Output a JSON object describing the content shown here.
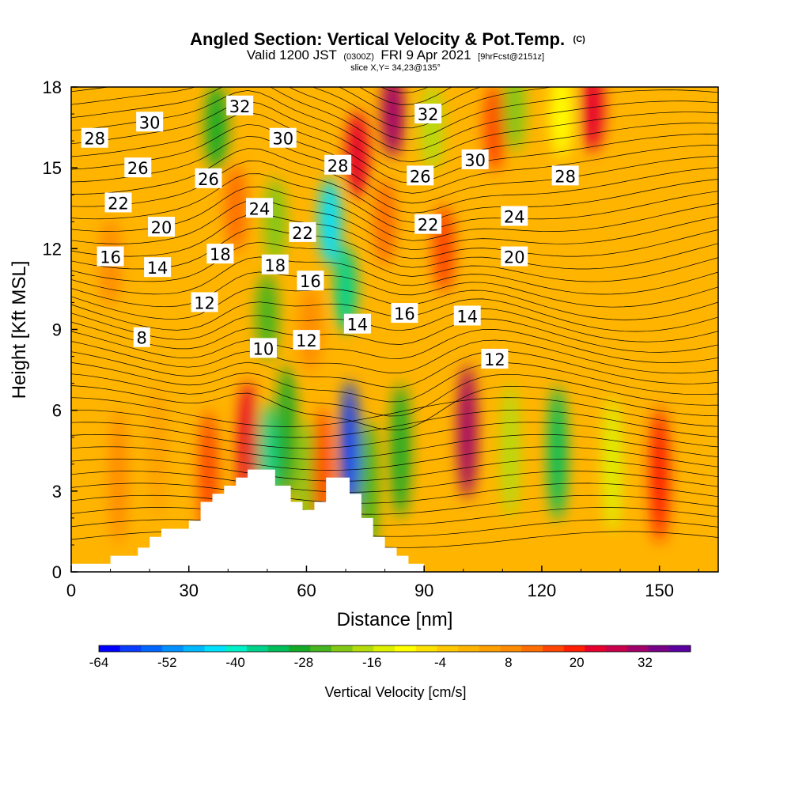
{
  "title": {
    "main": "Angled Section: Vertical Velocity & Pot.Temp.",
    "copyright": "(C)",
    "valid_part1": "Valid 1200 JST",
    "valid_utc": "(0300Z)",
    "valid_part2": "FRI 9 Apr 2021",
    "forecast": "[9hrFcst@2151z]",
    "slice": "slice X,Y= 34,23@135°"
  },
  "chart_data": {
    "type": "heatmap",
    "xlabel": "Distance [nm]",
    "ylabel": "Height [Kft MSL]",
    "x_ticks": [
      "0",
      "30",
      "60",
      "90",
      "120",
      "150"
    ],
    "y_ticks": [
      "0",
      "3",
      "6",
      "9",
      "12",
      "15",
      "18"
    ],
    "xlim": [
      0,
      165
    ],
    "ylim": [
      0,
      18
    ],
    "colorbar": {
      "title": "Vertical Velocity [cm/s]",
      "tick_labels": [
        "-64",
        "-52",
        "-40",
        "-28",
        "-16",
        "-4",
        "8",
        "20",
        "32"
      ],
      "min": -64,
      "max": 40,
      "step": 4,
      "colors": [
        "#0000ff",
        "#0a3cff",
        "#0066ff",
        "#0090ff",
        "#00b8ff",
        "#00e0ff",
        "#00f0c8",
        "#00d28c",
        "#00be5a",
        "#14aa28",
        "#46b41e",
        "#82c814",
        "#b4dc0a",
        "#dcf000",
        "#ffff00",
        "#ffe100",
        "#ffc800",
        "#ffb400",
        "#ffa000",
        "#ff8c00",
        "#ff6e00",
        "#ff4600",
        "#ff1e00",
        "#e6002d",
        "#c8004b",
        "#a00069",
        "#780087",
        "#5a00a0"
      ]
    },
    "terrain_profile": [
      [
        0,
        0.3
      ],
      [
        10,
        0.3
      ],
      [
        10,
        0.6
      ],
      [
        17,
        0.6
      ],
      [
        17,
        0.9
      ],
      [
        20,
        0.9
      ],
      [
        20,
        1.3
      ],
      [
        23,
        1.3
      ],
      [
        23,
        1.6
      ],
      [
        30,
        1.6
      ],
      [
        30,
        1.9
      ],
      [
        33,
        1.9
      ],
      [
        33,
        2.6
      ],
      [
        36,
        2.6
      ],
      [
        36,
        2.9
      ],
      [
        39,
        2.9
      ],
      [
        39,
        3.2
      ],
      [
        42,
        3.2
      ],
      [
        42,
        3.5
      ],
      [
        45,
        3.5
      ],
      [
        45,
        3.8
      ],
      [
        52,
        3.8
      ],
      [
        52,
        3.2
      ],
      [
        56,
        3.2
      ],
      [
        56,
        2.6
      ],
      [
        59,
        2.6
      ],
      [
        59,
        2.3
      ],
      [
        62,
        2.3
      ],
      [
        62,
        2.6
      ],
      [
        65,
        2.6
      ],
      [
        65,
        3.5
      ],
      [
        71,
        3.5
      ],
      [
        71,
        2.9
      ],
      [
        74,
        2.9
      ],
      [
        74,
        2.0
      ],
      [
        77,
        2.0
      ],
      [
        77,
        1.3
      ],
      [
        80,
        1.3
      ],
      [
        80,
        0.9
      ],
      [
        83,
        0.9
      ],
      [
        83,
        0.6
      ],
      [
        86,
        0.6
      ],
      [
        86,
        0.3
      ],
      [
        90,
        0.3
      ],
      [
        90,
        0
      ],
      [
        0,
        0
      ]
    ],
    "velocity_cells": [
      {
        "x": 12,
        "y": 3.5,
        "value": 12
      },
      {
        "x": 22,
        "y": 4.5,
        "value": 10
      },
      {
        "x": 35,
        "y": 3.5,
        "value": 20
      },
      {
        "x": 45,
        "y": 4.6,
        "value": 30
      },
      {
        "x": 50,
        "y": 3.8,
        "value": -36
      },
      {
        "x": 55,
        "y": 5.2,
        "value": -28
      },
      {
        "x": 60,
        "y": 3.2,
        "value": -20
      },
      {
        "x": 64,
        "y": 3.6,
        "value": 22
      },
      {
        "x": 71,
        "y": 4.6,
        "value": -60
      },
      {
        "x": 76,
        "y": 3.2,
        "value": -24
      },
      {
        "x": 84,
        "y": 4.5,
        "value": -26
      },
      {
        "x": 101,
        "y": 5.2,
        "value": 38
      },
      {
        "x": 112,
        "y": 4.5,
        "value": -14
      },
      {
        "x": 124,
        "y": 4.4,
        "value": -30
      },
      {
        "x": 138,
        "y": 4.0,
        "value": -10
      },
      {
        "x": 150,
        "y": 3.6,
        "value": 26
      },
      {
        "x": 37,
        "y": 16.5,
        "value": -28
      },
      {
        "x": 42,
        "y": 13.5,
        "value": 18
      },
      {
        "x": 50,
        "y": 9.5,
        "value": -24
      },
      {
        "x": 52,
        "y": 13.0,
        "value": -20
      },
      {
        "x": 61,
        "y": 9.0,
        "value": 14
      },
      {
        "x": 66,
        "y": 13.0,
        "value": -44
      },
      {
        "x": 70,
        "y": 10.5,
        "value": -36
      },
      {
        "x": 73,
        "y": 15.5,
        "value": 28
      },
      {
        "x": 82,
        "y": 17.0,
        "value": 38
      },
      {
        "x": 80,
        "y": 13.0,
        "value": 16
      },
      {
        "x": 95,
        "y": 12.0,
        "value": 20
      },
      {
        "x": 92,
        "y": 16.5,
        "value": -16
      },
      {
        "x": 108,
        "y": 16.5,
        "value": 20
      },
      {
        "x": 113,
        "y": 17.2,
        "value": -20
      },
      {
        "x": 125,
        "y": 17.0,
        "value": -8
      },
      {
        "x": 133,
        "y": 17.2,
        "value": 30
      },
      {
        "x": 10,
        "y": 11.5,
        "value": 14
      }
    ],
    "theta_contour_labels": [
      {
        "text": "30",
        "x": 20,
        "y": 16.7
      },
      {
        "text": "28",
        "x": 6,
        "y": 16.1
      },
      {
        "text": "32",
        "x": 43,
        "y": 17.3
      },
      {
        "text": "30",
        "x": 54,
        "y": 16.1
      },
      {
        "text": "26",
        "x": 17,
        "y": 15.0
      },
      {
        "text": "26",
        "x": 35,
        "y": 14.6
      },
      {
        "text": "28",
        "x": 68,
        "y": 15.1
      },
      {
        "text": "32",
        "x": 91,
        "y": 17.0
      },
      {
        "text": "30",
        "x": 103,
        "y": 15.3
      },
      {
        "text": "26",
        "x": 89,
        "y": 14.7
      },
      {
        "text": "28",
        "x": 126,
        "y": 14.7
      },
      {
        "text": "22",
        "x": 12,
        "y": 13.7
      },
      {
        "text": "20",
        "x": 23,
        "y": 12.8
      },
      {
        "text": "24",
        "x": 48,
        "y": 13.5
      },
      {
        "text": "22",
        "x": 59,
        "y": 12.6
      },
      {
        "text": "22",
        "x": 91,
        "y": 12.9
      },
      {
        "text": "24",
        "x": 113,
        "y": 13.2
      },
      {
        "text": "20",
        "x": 113,
        "y": 11.7
      },
      {
        "text": "16",
        "x": 10,
        "y": 11.7
      },
      {
        "text": "14",
        "x": 22,
        "y": 11.3
      },
      {
        "text": "18",
        "x": 38,
        "y": 11.8
      },
      {
        "text": "18",
        "x": 52,
        "y": 11.4
      },
      {
        "text": "16",
        "x": 61,
        "y": 10.8
      },
      {
        "text": "12",
        "x": 34,
        "y": 10.0
      },
      {
        "text": "16",
        "x": 85,
        "y": 9.6
      },
      {
        "text": "14",
        "x": 101,
        "y": 9.5
      },
      {
        "text": "14",
        "x": 73,
        "y": 9.2
      },
      {
        "text": "12",
        "x": 60,
        "y": 8.6
      },
      {
        "text": "8",
        "x": 18,
        "y": 8.7
      },
      {
        "text": "10",
        "x": 49,
        "y": 8.3
      },
      {
        "text": "12",
        "x": 108,
        "y": 7.9
      }
    ]
  }
}
